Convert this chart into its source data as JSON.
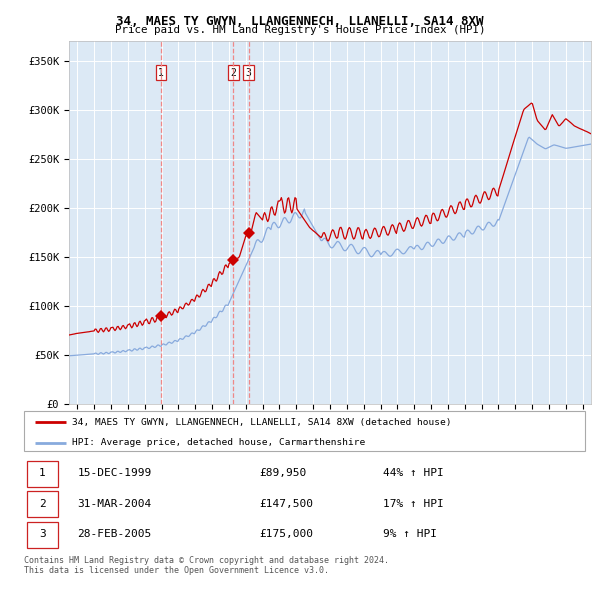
{
  "title": "34, MAES TY GWYN, LLANGENNECH, LLANELLI, SA14 8XW",
  "subtitle": "Price paid vs. HM Land Registry's House Price Index (HPI)",
  "plot_bg_color": "#dce9f5",
  "ylabel_ticks": [
    "£0",
    "£50K",
    "£100K",
    "£150K",
    "£200K",
    "£250K",
    "£300K",
    "£350K"
  ],
  "ytick_vals": [
    0,
    50000,
    100000,
    150000,
    200000,
    250000,
    300000,
    350000
  ],
  "ylim": [
    0,
    370000
  ],
  "xlim_start": 1994.5,
  "xlim_end": 2025.5,
  "transactions": [
    {
      "num": 1,
      "date": "15-DEC-1999",
      "year": 1999.96,
      "price": 89950,
      "pct": "44%",
      "label": "1"
    },
    {
      "num": 2,
      "date": "31-MAR-2004",
      "year": 2004.25,
      "price": 147500,
      "pct": "17%",
      "label": "2"
    },
    {
      "num": 3,
      "date": "28-FEB-2005",
      "year": 2005.17,
      "price": 175000,
      "pct": "9%",
      "label": "3"
    }
  ],
  "line_color_red": "#cc0000",
  "line_color_blue": "#88aadd",
  "vline_color": "#ee8888",
  "marker_color": "#cc0000",
  "footer_text": "Contains HM Land Registry data © Crown copyright and database right 2024.\nThis data is licensed under the Open Government Licence v3.0.",
  "legend_label_red": "34, MAES TY GWYN, LLANGENNECH, LLANELLI, SA14 8XW (detached house)",
  "legend_label_blue": "HPI: Average price, detached house, Carmarthenshire"
}
